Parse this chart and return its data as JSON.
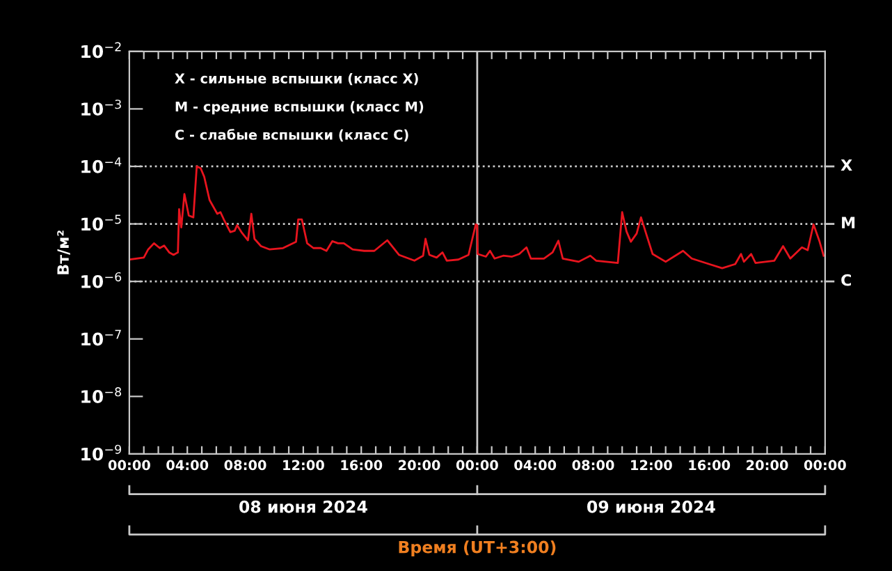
{
  "chart_data": {
    "type": "line",
    "ylabel": "Вт/м²",
    "xlabel": "Время (UT+3:00)",
    "log": "y",
    "grid": false,
    "legend": false,
    "marker": "none",
    "line_style": "solid",
    "xlim": [
      "2024-06-08T00:00",
      "2024-06-10T00:00"
    ],
    "ylim": [
      1e-09,
      0.01
    ],
    "xticks": [
      {
        "value": "2024-06-08T00:00",
        "label": "00:00"
      },
      {
        "value": "2024-06-08T01:00",
        "label": null
      },
      {
        "value": "2024-06-08T02:00",
        "label": null
      },
      {
        "value": "2024-06-08T03:00",
        "label": null
      },
      {
        "value": "2024-06-08T04:00",
        "label": "04:00"
      },
      {
        "value": "2024-06-08T05:00",
        "label": null
      },
      {
        "value": "2024-06-08T06:00",
        "label": null
      },
      {
        "value": "2024-06-08T07:00",
        "label": null
      },
      {
        "value": "2024-06-08T08:00",
        "label": "08:00"
      },
      {
        "value": "2024-06-08T09:00",
        "label": null
      },
      {
        "value": "2024-06-08T10:00",
        "label": null
      },
      {
        "value": "2024-06-08T11:00",
        "label": null
      },
      {
        "value": "2024-06-08T12:00",
        "label": "12:00"
      },
      {
        "value": "2024-06-08T13:00",
        "label": null
      },
      {
        "value": "2024-06-08T14:00",
        "label": null
      },
      {
        "value": "2024-06-08T15:00",
        "label": null
      },
      {
        "value": "2024-06-08T16:00",
        "label": "16:00"
      },
      {
        "value": "2024-06-08T17:00",
        "label": null
      },
      {
        "value": "2024-06-08T18:00",
        "label": null
      },
      {
        "value": "2024-06-08T19:00",
        "label": null
      },
      {
        "value": "2024-06-08T20:00",
        "label": "20:00"
      },
      {
        "value": "2024-06-08T21:00",
        "label": null
      },
      {
        "value": "2024-06-08T22:00",
        "label": null
      },
      {
        "value": "2024-06-08T23:00",
        "label": null
      },
      {
        "value": "2024-06-09T00:00",
        "label": "00:00"
      },
      {
        "value": "2024-06-09T01:00",
        "label": null
      },
      {
        "value": "2024-06-09T02:00",
        "label": null
      },
      {
        "value": "2024-06-09T03:00",
        "label": null
      },
      {
        "value": "2024-06-09T04:00",
        "label": "04:00"
      },
      {
        "value": "2024-06-09T05:00",
        "label": null
      },
      {
        "value": "2024-06-09T06:00",
        "label": null
      },
      {
        "value": "2024-06-09T07:00",
        "label": null
      },
      {
        "value": "2024-06-09T08:00",
        "label": "08:00"
      },
      {
        "value": "2024-06-09T09:00",
        "label": null
      },
      {
        "value": "2024-06-09T10:00",
        "label": null
      },
      {
        "value": "2024-06-09T11:00",
        "label": null
      },
      {
        "value": "2024-06-09T12:00",
        "label": "12:00"
      },
      {
        "value": "2024-06-09T13:00",
        "label": null
      },
      {
        "value": "2024-06-09T14:00",
        "label": null
      },
      {
        "value": "2024-06-09T15:00",
        "label": null
      },
      {
        "value": "2024-06-09T16:00",
        "label": "16:00"
      },
      {
        "value": "2024-06-09T17:00",
        "label": null
      },
      {
        "value": "2024-06-09T18:00",
        "label": null
      },
      {
        "value": "2024-06-09T19:00",
        "label": null
      },
      {
        "value": "2024-06-09T20:00",
        "label": "20:00"
      },
      {
        "value": "2024-06-09T21:00",
        "label": null
      },
      {
        "value": "2024-06-09T22:00",
        "label": null
      },
      {
        "value": "2024-06-09T23:00",
        "label": null
      },
      {
        "value": "2024-06-10T00:00",
        "label": "00:00"
      }
    ],
    "yticks": [
      {
        "value": 1e-09,
        "label": "10$^{−9}$"
      },
      {
        "value": 1e-08,
        "label": "10$^{−8}$"
      },
      {
        "value": 1e-07,
        "label": "10$^{−7}$"
      },
      {
        "value": 1e-06,
        "label": "10$^{−6}$"
      },
      {
        "value": 1e-05,
        "label": "10$^{−5}$"
      },
      {
        "value": 0.0001,
        "label": "10$^{−4}$"
      },
      {
        "value": 0.001,
        "label": "10$^{−3}$"
      },
      {
        "value": 0.01,
        "label": "10$^{−2}$"
      }
    ],
    "ref_lines": [
      {
        "axis": "y",
        "value": 0.0001,
        "label": "X",
        "color": "#c8c8c8",
        "line_style": "dotted"
      },
      {
        "axis": "y",
        "value": 1e-05,
        "label": "M",
        "color": "#c8c8c8",
        "line_style": "dotted"
      },
      {
        "axis": "y",
        "value": 1e-06,
        "label": "C",
        "color": "#c8c8c8",
        "line_style": "dotted"
      },
      {
        "axis": "x",
        "value": "2024-06-09T00:00",
        "color": "#c8c8c8",
        "line_style": "solid"
      }
    ],
    "annotations": [
      "X - сильные вспышки (класс X)",
      "M - средние вспышки (класс M)",
      "C - слабые вспышки (класс C)",
      "08 июня 2024",
      "09 июня 2024"
    ],
    "series": [
      {
        "color": "#e8141e",
        "x": [
          "2024-06-08T00:02",
          "2024-06-08T01:00",
          "2024-06-08T01:18",
          "2024-06-08T01:42",
          "2024-06-08T02:06",
          "2024-06-08T02:24",
          "2024-06-08T02:45",
          "2024-06-08T03:03",
          "2024-06-08T03:21",
          "2024-06-08T03:26",
          "2024-06-08T03:35",
          "2024-06-08T03:48",
          "2024-06-08T04:06",
          "2024-06-08T04:25",
          "2024-06-08T04:39",
          "2024-06-08T04:55",
          "2024-06-08T05:10",
          "2024-06-08T05:32",
          "2024-06-08T06:04",
          "2024-06-08T06:17",
          "2024-06-08T06:31",
          "2024-06-08T06:58",
          "2024-06-08T07:16",
          "2024-06-08T07:26",
          "2024-06-08T07:44",
          "2024-06-08T08:11",
          "2024-06-08T08:25",
          "2024-06-08T08:38",
          "2024-06-08T09:05",
          "2024-06-08T09:41",
          "2024-06-08T10:36",
          "2024-06-08T11:30",
          "2024-06-08T11:39",
          "2024-06-08T11:54",
          "2024-06-08T12:16",
          "2024-06-08T12:42",
          "2024-06-08T13:12",
          "2024-06-08T13:36",
          "2024-06-08T14:00",
          "2024-06-08T14:24",
          "2024-06-08T14:48",
          "2024-06-08T15:24",
          "2024-06-08T16:12",
          "2024-06-08T16:54",
          "2024-06-08T17:48",
          "2024-06-08T18:36",
          "2024-06-08T19:40",
          "2024-06-08T20:16",
          "2024-06-08T20:26",
          "2024-06-08T20:42",
          "2024-06-08T21:12",
          "2024-06-08T21:36",
          "2024-06-08T21:54",
          "2024-06-08T22:42",
          "2024-06-08T23:24",
          "2024-06-08T23:54",
          "2024-06-09T00:00",
          "2024-06-09T00:02",
          "2024-06-09T00:36",
          "2024-06-09T00:53",
          "2024-06-09T01:12",
          "2024-06-09T01:48",
          "2024-06-09T02:24",
          "2024-06-09T02:54",
          "2024-06-09T03:24",
          "2024-06-09T03:42",
          "2024-06-09T04:36",
          "2024-06-09T05:12",
          "2024-06-09T05:36",
          "2024-06-09T05:54",
          "2024-06-09T07:00",
          "2024-06-09T07:48",
          "2024-06-09T08:12",
          "2024-06-09T09:42",
          "2024-06-09T10:00",
          "2024-06-09T10:18",
          "2024-06-09T10:36",
          "2024-06-09T11:00",
          "2024-06-09T11:18",
          "2024-06-09T11:42",
          "2024-06-09T12:06",
          "2024-06-09T13:00",
          "2024-06-09T14:12",
          "2024-06-09T14:48",
          "2024-06-09T16:00",
          "2024-06-09T16:54",
          "2024-06-09T17:48",
          "2024-06-09T18:12",
          "2024-06-09T18:24",
          "2024-06-09T18:54",
          "2024-06-09T19:12",
          "2024-06-09T20:30",
          "2024-06-09T21:06",
          "2024-06-09T21:36",
          "2024-06-09T22:24",
          "2024-06-09T22:48",
          "2024-06-09T23:12",
          "2024-06-09T23:36",
          "2024-06-09T23:54"
        ],
        "values": [
          2.4e-06,
          2.6e-06,
          3.6e-06,
          4.6e-06,
          3.8e-06,
          4.2e-06,
          3.2e-06,
          2.9e-06,
          3.2e-06,
          1.8e-05,
          8.7e-06,
          3.3e-05,
          1.4e-05,
          1.3e-05,
          0.0001,
          9.3e-05,
          6.6e-05,
          2.6e-05,
          1.5e-05,
          1.6e-05,
          1.2e-05,
          7.2e-06,
          7.6e-06,
          9.5e-06,
          7.2e-06,
          5.2e-06,
          1.5e-05,
          5.5e-06,
          4.1e-06,
          3.6e-06,
          3.8e-06,
          4.9e-06,
          1.2e-05,
          1.2e-05,
          4.6e-06,
          3.8e-06,
          3.8e-06,
          3.4e-06,
          5e-06,
          4.6e-06,
          4.6e-06,
          3.6e-06,
          3.4e-06,
          3.4e-06,
          5.2e-06,
          2.9e-06,
          2.3e-06,
          2.8e-06,
          5.5e-06,
          2.9e-06,
          2.6e-06,
          3.2e-06,
          2.3e-06,
          2.4e-06,
          2.9e-06,
          9.8e-06,
          9.5e-06,
          3e-06,
          2.7e-06,
          3.4e-06,
          2.5e-06,
          2.8e-06,
          2.7e-06,
          3e-06,
          3.9e-06,
          2.5e-06,
          2.5e-06,
          3.2e-06,
          5.1e-06,
          2.5e-06,
          2.2e-06,
          2.8e-06,
          2.3e-06,
          2.1e-06,
          1.6e-05,
          7.4e-06,
          4.9e-06,
          6.8e-06,
          1.3e-05,
          6.2e-06,
          3e-06,
          2.2e-06,
          3.4e-06,
          2.5e-06,
          2e-06,
          1.7e-06,
          2e-06,
          3e-06,
          2.2e-06,
          3e-06,
          2.1e-06,
          2.3e-06,
          4.1e-06,
          2.5e-06,
          3.9e-06,
          3.5e-06,
          9.8e-06,
          5.1e-06,
          2.8e-06
        ]
      }
    ]
  }
}
